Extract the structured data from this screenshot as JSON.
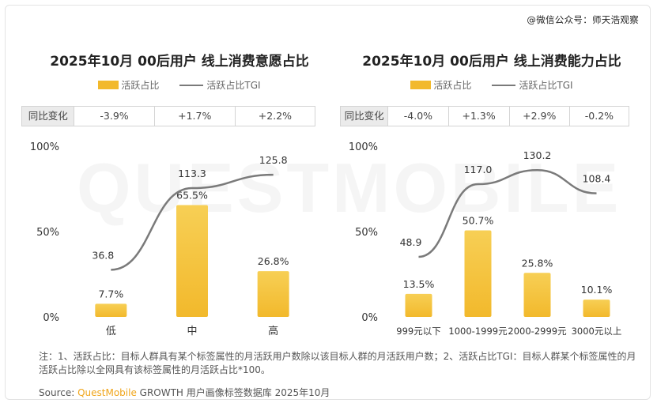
{
  "watermark_account": "@微信公众号：师天浩观察",
  "watermark_text": "QUESTMOBILE",
  "legend": {
    "bar": "活跃占比",
    "line": "活跃占比TGI"
  },
  "yoy_label": "同比变化",
  "colors": {
    "bar": "#f2b92c",
    "bar_light": "#f7cf55",
    "line": "#7a7a7a",
    "table_head": "#ebebeb"
  },
  "chart_data": [
    {
      "type": "bar",
      "title": "2025年10月 00后用户 线上消费意愿占比",
      "categories": [
        "低",
        "中",
        "高"
      ],
      "yoy": [
        "-3.9%",
        "+1.7%",
        "+2.2%"
      ],
      "series": [
        {
          "name": "活跃占比",
          "values": [
            7.7,
            65.5,
            26.8
          ],
          "labels": [
            "7.7%",
            "65.5%",
            "26.8%"
          ]
        },
        {
          "name": "活跃占比TGI",
          "type": "line",
          "values": [
            36.8,
            113.3,
            125.8
          ],
          "labels": [
            "36.8",
            "113.3",
            "125.8"
          ]
        }
      ],
      "yticks": [
        "0%",
        "50%",
        "100%"
      ],
      "ylim": [
        0,
        100
      ]
    },
    {
      "type": "bar",
      "title": "2025年10月 00后用户 线上消费能力占比",
      "categories": [
        "999元以下",
        "1000-1999元",
        "2000-2999元",
        "3000元以上"
      ],
      "yoy": [
        "-4.0%",
        "+1.3%",
        "+2.9%",
        "-0.2%"
      ],
      "series": [
        {
          "name": "活跃占比",
          "values": [
            13.5,
            50.7,
            25.8,
            10.1
          ],
          "labels": [
            "13.5%",
            "50.7%",
            "25.8%",
            "10.1%"
          ]
        },
        {
          "name": "活跃占比TGI",
          "type": "line",
          "values": [
            48.9,
            117.0,
            130.2,
            108.4
          ],
          "labels": [
            "48.9",
            "117.0",
            "130.2",
            "108.4"
          ]
        }
      ],
      "yticks": [
        "0%",
        "50%",
        "100%"
      ],
      "ylim": [
        0,
        100
      ]
    }
  ],
  "note": "注：1、活跃占比：目标人群具有某个标签属性的月活跃用户数除以该目标人群的月活跃用户数；2、活跃占比TGI：目标人群某个标签属性的月活跃占比除以全网具有该标签属性的月活跃占比*100。",
  "source": {
    "prefix": "Source: ",
    "brand": "QuestMobile",
    "suffix": " GROWTH 用户画像标签数据库 2025年10月"
  }
}
